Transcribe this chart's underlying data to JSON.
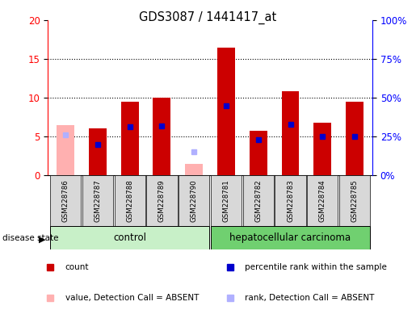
{
  "title": "GDS3087 / 1441417_at",
  "samples": [
    "GSM228786",
    "GSM228787",
    "GSM228788",
    "GSM228789",
    "GSM228790",
    "GSM228781",
    "GSM228782",
    "GSM228783",
    "GSM228784",
    "GSM228785"
  ],
  "absent": [
    true,
    false,
    false,
    false,
    true,
    false,
    false,
    false,
    false,
    false
  ],
  "count_values": [
    6.5,
    6.0,
    9.5,
    10.0,
    1.5,
    16.5,
    5.7,
    10.8,
    6.8,
    9.5
  ],
  "rank_values": [
    26,
    20,
    31,
    32,
    15,
    45,
    23,
    33,
    25,
    25
  ],
  "ylim_left": [
    0,
    20
  ],
  "ylim_right": [
    0,
    100
  ],
  "yticks_left": [
    0,
    5,
    10,
    15,
    20
  ],
  "yticks_right": [
    0,
    25,
    50,
    75,
    100
  ],
  "ytick_labels_left": [
    "0",
    "5",
    "10",
    "15",
    "20"
  ],
  "ytick_labels_right": [
    "0%",
    "25%",
    "50%",
    "75%",
    "100%"
  ],
  "color_present_bar": "#cc0000",
  "color_absent_bar": "#ffb0b0",
  "color_present_rank": "#0000cc",
  "color_absent_rank": "#b0b0ff",
  "color_control_bg": "#c8f0c8",
  "color_cancer_bg": "#70d070",
  "color_label_bg": "#d8d8d8",
  "bar_width": 0.55,
  "legend_items": [
    "count",
    "percentile rank within the sample",
    "value, Detection Call = ABSENT",
    "rank, Detection Call = ABSENT"
  ],
  "group_label_control": "control",
  "group_label_cancer": "hepatocellular carcinoma",
  "disease_state_label": "disease state"
}
